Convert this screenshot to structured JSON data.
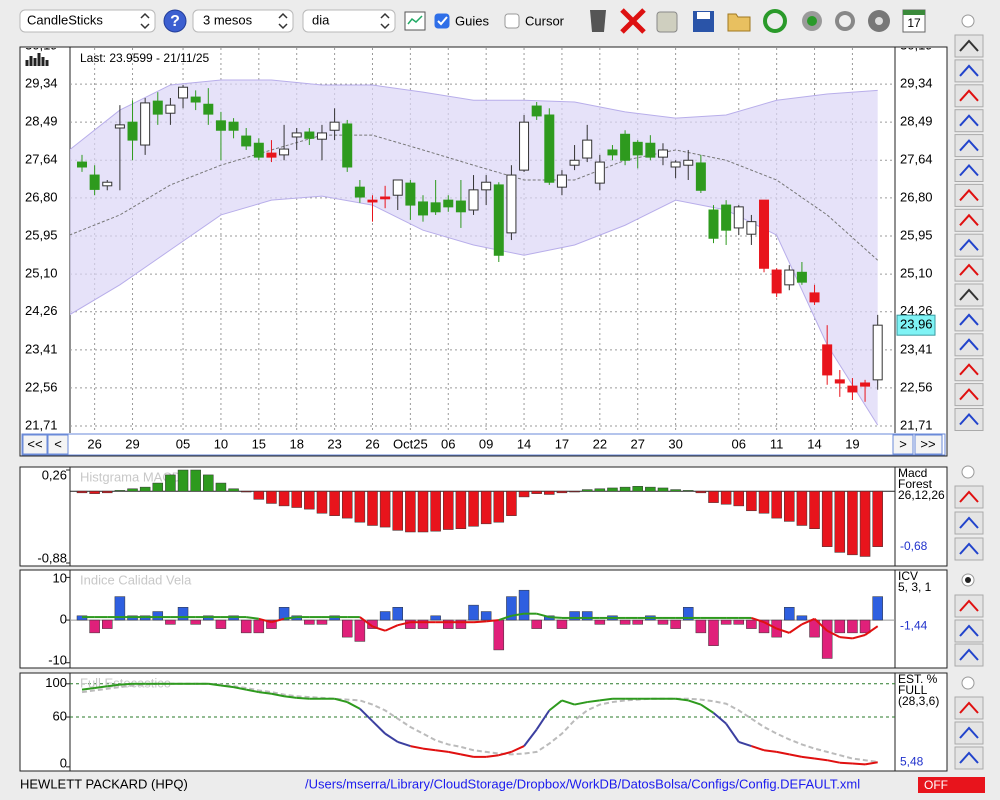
{
  "toolbar": {
    "chart_type": "CandleSticks",
    "help": "?",
    "period": "3 mesos",
    "interval": "dia",
    "guides": "Guies",
    "guides_checked": true,
    "cursor": "Cursor",
    "cursor_checked": false,
    "calendar": "17"
  },
  "main_chart": {
    "last": "Last: 23.9599 - 21/11/25",
    "ylim": [
      21.71,
      30.19
    ],
    "yticks": [
      {
        "value": 30.19,
        "label": "30,19"
      },
      {
        "value": 29.34,
        "label": "29,34"
      },
      {
        "value": 28.49,
        "label": "28,49"
      },
      {
        "value": 27.64,
        "label": "27,64"
      },
      {
        "value": 26.8,
        "label": "26,80"
      },
      {
        "value": 25.95,
        "label": "25,95"
      },
      {
        "value": 25.1,
        "label": "25,10"
      },
      {
        "value": 24.26,
        "label": "24,26"
      },
      {
        "value": 23.41,
        "label": "23,41"
      },
      {
        "value": 22.56,
        "label": "22,56"
      },
      {
        "value": 21.71,
        "label": "21,71"
      }
    ],
    "dates": [
      null,
      "26",
      null,
      null,
      "29",
      null,
      null,
      null,
      "05",
      null,
      null,
      "10",
      null,
      null,
      "15",
      null,
      null,
      "18",
      null,
      null,
      "23",
      null,
      null,
      "26",
      null,
      null,
      "Oct25",
      null,
      null,
      "06",
      null,
      null,
      "09",
      null,
      null,
      "14",
      null,
      null,
      "17",
      null,
      null,
      "22",
      null,
      null,
      "27",
      null,
      null,
      "30",
      null,
      null,
      null,
      null,
      "06",
      null,
      null,
      "11",
      null,
      null,
      "14",
      null,
      null,
      "19",
      null,
      null
    ],
    "open": [
      27.6,
      27.31,
      27.07,
      28.36,
      28.49,
      27.98,
      28.96,
      28.69,
      29.03,
      29.05,
      28.89,
      28.52,
      28.49,
      28.18,
      28.02,
      27.8,
      27.76,
      28.16,
      28.27,
      28.11,
      28.31,
      28.45,
      27.04,
      26.75,
      26.82,
      26.86,
      27.13,
      26.71,
      26.69,
      26.75,
      26.73,
      26.53,
      26.98,
      27.09,
      26.02,
      27.42,
      28.85,
      28.65,
      27.04,
      27.53,
      27.69,
      27.13,
      27.87,
      28.22,
      28.04,
      28.02,
      27.71,
      27.49,
      27.53,
      27.58,
      26.53,
      26.64,
      26.13,
      25.99,
      26.75,
      25.19,
      24.86,
      25.14,
      24.68,
      23.52,
      22.74,
      22.6,
      22.67,
      22.74
    ],
    "high": [
      27.76,
      27.53,
      27.2,
      28.87,
      28.98,
      29.03,
      29.16,
      29.03,
      29.32,
      29.2,
      29.25,
      28.72,
      28.58,
      28.36,
      28.13,
      28.09,
      28.43,
      28.36,
      28.36,
      28.43,
      28.8,
      28.54,
      27.2,
      26.86,
      27.07,
      27.2,
      27.2,
      26.86,
      27.2,
      26.86,
      27.2,
      27.31,
      27.31,
      27.15,
      27.53,
      28.65,
      28.94,
      28.8,
      27.42,
      27.98,
      28.43,
      27.76,
      27.98,
      28.31,
      28.09,
      28.2,
      28.02,
      27.64,
      27.87,
      27.76,
      26.64,
      26.75,
      26.64,
      26.42,
      26.75,
      25.23,
      25.3,
      25.37,
      24.86,
      23.96,
      22.96,
      22.78,
      22.74,
      24.19
    ],
    "low": [
      27.38,
      26.86,
      26.97,
      26.97,
      27.64,
      27.76,
      28.43,
      28.43,
      28.8,
      28.76,
      28.43,
      27.64,
      28.13,
      27.87,
      27.64,
      27.6,
      27.64,
      27.87,
      27.98,
      27.64,
      28.09,
      27.38,
      26.69,
      26.27,
      26.57,
      26.53,
      26.31,
      26.27,
      26.42,
      26.49,
      26.13,
      26.42,
      26.64,
      25.37,
      25.86,
      27.38,
      28.54,
      27.09,
      26.86,
      27.42,
      27.6,
      26.97,
      27.64,
      27.53,
      27.46,
      27.64,
      27.53,
      27.24,
      27.2,
      26.91,
      25.79,
      25.75,
      25.97,
      25.75,
      25.14,
      24.59,
      24.74,
      24.86,
      24.41,
      22.63,
      22.36,
      22.29,
      22.25,
      22.52
    ],
    "close": [
      27.49,
      26.99,
      27.15,
      28.43,
      28.09,
      28.92,
      28.67,
      28.87,
      29.27,
      28.94,
      28.67,
      28.31,
      28.31,
      27.96,
      27.71,
      27.71,
      27.89,
      28.25,
      28.13,
      28.25,
      28.49,
      27.49,
      26.82,
      26.71,
      26.78,
      27.2,
      26.64,
      26.42,
      26.49,
      26.6,
      26.49,
      26.98,
      27.15,
      25.52,
      27.31,
      28.49,
      28.63,
      27.15,
      27.31,
      27.64,
      28.09,
      27.6,
      27.76,
      27.64,
      27.76,
      27.71,
      27.87,
      27.6,
      27.64,
      26.97,
      25.9,
      26.08,
      26.6,
      26.27,
      25.23,
      24.68,
      25.19,
      24.92,
      24.48,
      22.85,
      22.67,
      22.47,
      22.6,
      23.96
    ],
    "candle_colors": [
      "#2e9a1e",
      "#2e9a1e",
      "#ffffff",
      "#ffffff",
      "#2e9a1e",
      "#ffffff",
      "#2e9a1e",
      "#ffffff",
      "#ffffff",
      "#2e9a1e",
      "#2e9a1e",
      "#2e9a1e",
      "#2e9a1e",
      "#2e9a1e",
      "#2e9a1e",
      "#e8141c",
      "#ffffff",
      "#ffffff",
      "#2e9a1e",
      "#ffffff",
      "#ffffff",
      "#2e9a1e",
      "#2e9a1e",
      "#e8141c",
      "#e8141c",
      "#ffffff",
      "#2e9a1e",
      "#2e9a1e",
      "#2e9a1e",
      "#2e9a1e",
      "#2e9a1e",
      "#ffffff",
      "#ffffff",
      "#2e9a1e",
      "#ffffff",
      "#ffffff",
      "#2e9a1e",
      "#2e9a1e",
      "#ffffff",
      "#ffffff",
      "#ffffff",
      "#ffffff",
      "#2e9a1e",
      "#2e9a1e",
      "#2e9a1e",
      "#2e9a1e",
      "#ffffff",
      "#ffffff",
      "#ffffff",
      "#2e9a1e",
      "#2e9a1e",
      "#2e9a1e",
      "#ffffff",
      "#ffffff",
      "#e8141c",
      "#e8141c",
      "#ffffff",
      "#2e9a1e",
      "#e8141c",
      "#e8141c",
      "#e8141c",
      "#e8141c",
      "#e8141c",
      "#ffffff"
    ],
    "bands": {
      "x": [
        -1,
        3,
        7,
        11,
        15,
        19,
        23,
        27,
        31,
        35,
        39,
        43,
        47,
        51,
        55,
        59,
        63
      ],
      "upper": [
        27.87,
        28.76,
        29.32,
        29.43,
        29.43,
        29.32,
        29.32,
        29.16,
        28.98,
        28.98,
        28.94,
        28.72,
        28.58,
        28.65,
        28.98,
        29.12,
        29.2
      ],
      "middle": [
        25.97,
        26.42,
        27.09,
        27.53,
        27.87,
        28.2,
        28.2,
        27.87,
        27.53,
        27.2,
        27.2,
        27.64,
        27.87,
        27.64,
        27.2,
        26.42,
        25.41
      ],
      "lower": [
        24.19,
        24.86,
        25.64,
        26.42,
        26.75,
        26.84,
        26.64,
        26.08,
        25.75,
        25.52,
        25.75,
        26.19,
        26.75,
        26.53,
        25.97,
        23.52,
        21.73
      ],
      "fill": "#dcd6f7",
      "line_color": "#b8aeea"
    },
    "price_tag": {
      "value": 23.96,
      "label": "23,96"
    },
    "nav": {
      "first": "<<",
      "prev": "<",
      "next": ">",
      "last": ">>"
    }
  },
  "macd": {
    "title": "Histgrama MACD",
    "labels": [
      "Macd",
      "Forest",
      "26,12,26"
    ],
    "current": {
      "value": -0.68,
      "label": "-0,68"
    },
    "ylim": [
      -0.88,
      0.26
    ],
    "yticks": [
      {
        "value": 0.26,
        "label": "0,26"
      },
      {
        "value": -0.88,
        "label": "-0,88"
      }
    ],
    "values": [
      -0.02,
      -0.03,
      -0.02,
      0.01,
      0.03,
      0.05,
      0.1,
      0.2,
      0.26,
      0.26,
      0.2,
      0.1,
      0.03,
      -0.01,
      -0.1,
      -0.15,
      -0.18,
      -0.2,
      -0.22,
      -0.27,
      -0.3,
      -0.33,
      -0.38,
      -0.42,
      -0.44,
      -0.48,
      -0.5,
      -0.5,
      -0.49,
      -0.47,
      -0.46,
      -0.43,
      -0.4,
      -0.38,
      -0.3,
      -0.07,
      -0.03,
      -0.04,
      -0.02,
      -0.01,
      0.02,
      0.03,
      0.04,
      0.05,
      0.06,
      0.05,
      0.04,
      0.02,
      0.01,
      -0.02,
      -0.14,
      -0.16,
      -0.18,
      -0.24,
      -0.27,
      -0.33,
      -0.37,
      -0.42,
      -0.46,
      -0.68,
      -0.75,
      -0.78,
      -0.8,
      -0.68
    ],
    "up_color": "#2e9a1e",
    "down_color": "#e8141c"
  },
  "icv": {
    "title": "Indice Calidad Vela",
    "labels": [
      "ICV",
      "5, 3, 1"
    ],
    "current": {
      "value": -1.44,
      "label": "-1,44"
    },
    "ylim": [
      -11,
      11.5
    ],
    "yticks": [
      10,
      0,
      -10
    ],
    "bars": [
      1,
      -3,
      -2,
      5.5,
      1,
      1,
      2,
      -1,
      3,
      -1,
      1,
      -2,
      1,
      -3,
      -3,
      -2,
      3,
      1,
      -1,
      -1,
      1,
      -4,
      -5,
      -2,
      2,
      3,
      -2,
      -2,
      1,
      -2,
      -2,
      3.5,
      2,
      -7,
      5.5,
      7,
      -2,
      1,
      -2,
      2,
      2,
      -1,
      1,
      -1,
      -1,
      1,
      -1,
      -2,
      3,
      -3,
      -6,
      -1,
      -1,
      -2,
      -3,
      -4,
      3,
      1,
      -4,
      -9,
      -3,
      -3,
      -3,
      5.5
    ],
    "line": [
      0.7,
      0.7,
      0.7,
      0.7,
      0.7,
      0.7,
      0.7,
      0.7,
      0.7,
      0.7,
      0.7,
      0.7,
      0.7,
      0.7,
      0.3,
      -0.5,
      0.3,
      0.7,
      0.7,
      0.7,
      0.7,
      0.7,
      0.7,
      -1.5,
      -2.5,
      -1.2,
      -0.5,
      -0.5,
      -0.5,
      -0.5,
      -0.5,
      -0.5,
      -0.3,
      0,
      1,
      1.5,
      1.5,
      0.7,
      0.5,
      0.5,
      0.5,
      0.5,
      0.5,
      0.5,
      0.5,
      0.5,
      0.5,
      0.5,
      0.5,
      0.5,
      0.5,
      0.5,
      0.5,
      0.5,
      -0.5,
      -2,
      -3,
      -1,
      0.3,
      -2.5,
      -4,
      -4.3,
      -3.5,
      -1.44
    ],
    "pos_color": "#2e5fe0",
    "neg_color": "#e0207a",
    "line_up_color": "#2e9a1e",
    "line_down_color": "#e01010"
  },
  "stoch": {
    "title": "Full Estocastico",
    "labels": [
      "EST. %",
      "FULL",
      "(28,3,6)"
    ],
    "current": {
      "value": 5.48,
      "label": "5,48"
    },
    "ylim": [
      -5,
      113
    ],
    "yticks": [
      100,
      60,
      0
    ],
    "k": [
      93,
      95,
      97,
      99,
      100,
      100,
      100,
      100,
      100,
      100,
      100,
      98,
      96,
      93,
      90,
      88,
      85,
      83,
      82,
      82,
      82,
      78,
      70,
      55,
      40,
      30,
      25,
      22,
      20,
      18,
      15,
      12,
      12,
      14,
      18,
      25,
      45,
      68,
      80,
      75,
      78,
      80,
      82,
      82,
      82,
      82,
      82,
      82,
      80,
      75,
      65,
      52,
      30,
      25,
      20,
      18,
      15,
      12,
      10,
      8,
      5,
      4,
      3,
      5.48
    ],
    "d": [
      90,
      92,
      94,
      96,
      98,
      99,
      100,
      100,
      100,
      100,
      100,
      99,
      97,
      95,
      92,
      90,
      87,
      85,
      84,
      83,
      82,
      81,
      80,
      75,
      68,
      58,
      48,
      40,
      32,
      27,
      24,
      20,
      18,
      16,
      15,
      16,
      18,
      28,
      40,
      56,
      68,
      75,
      78,
      80,
      81,
      82,
      82,
      82,
      82,
      81,
      79,
      76,
      68,
      58,
      48,
      40,
      33,
      27,
      22,
      18,
      14,
      10,
      8,
      6
    ],
    "k_high_color": "#2e9a1e",
    "k_mid_color": "#3b3fa0",
    "k_low_color": "#e01010",
    "d_color": "#bbbbbb"
  },
  "footer": {
    "symbol": "HEWLETT PACKARD (HPQ)",
    "path": "/Users/mserra/Library/CloudStorage/Dropbox/WorkDB/DatosBolsa/Configs/Config.DEFAULT.xml",
    "status": "OFF"
  }
}
